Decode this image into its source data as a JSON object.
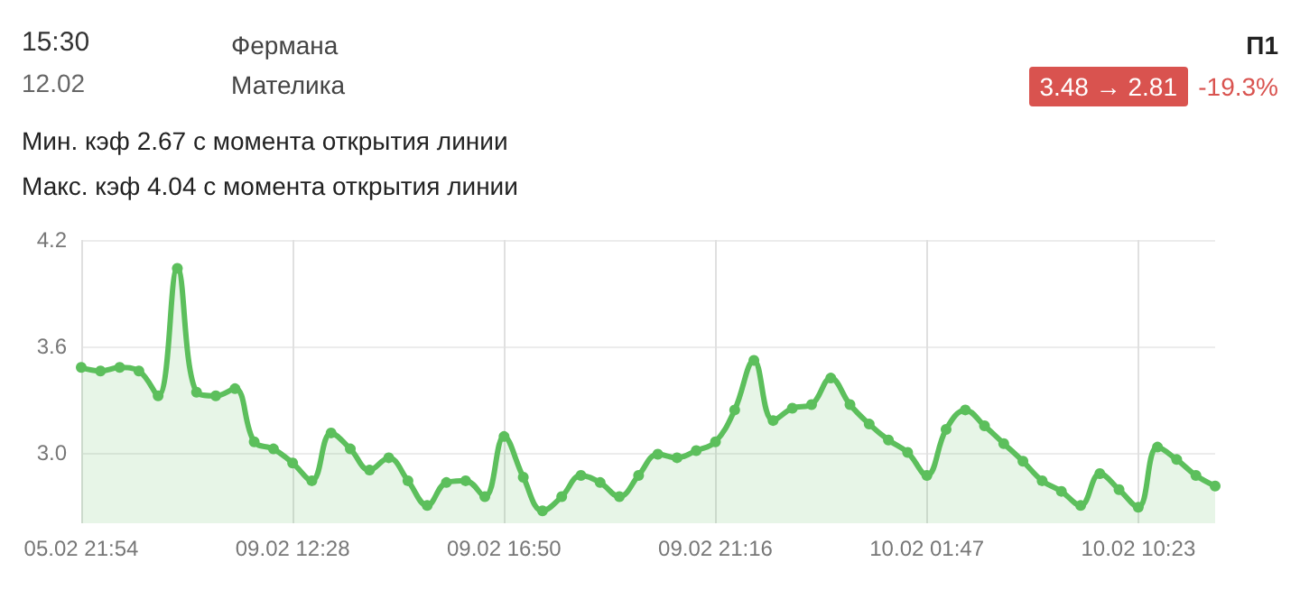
{
  "chart_data": {
    "type": "area",
    "annotations": [
      "15:30",
      "12.02",
      "Фермана",
      "Мателика",
      "П1",
      "3.48 → 2.81",
      "-19.3%",
      "Мин. кэф 2.67 с момента открытия линии",
      "Макс. кэф 4.04 с момента открытия линии"
    ],
    "categories": [
      "05.02 21:54",
      null,
      null,
      null,
      null,
      null,
      null,
      null,
      null,
      null,
      null,
      "09.02 12:28",
      null,
      null,
      null,
      null,
      null,
      null,
      null,
      null,
      null,
      null,
      "09.02 16:50",
      null,
      null,
      null,
      null,
      null,
      null,
      null,
      null,
      null,
      null,
      "09.02 21:16",
      null,
      null,
      null,
      null,
      null,
      null,
      null,
      null,
      null,
      null,
      "10.02 01:47",
      null,
      null,
      null,
      null,
      null,
      null,
      null,
      null,
      null,
      null,
      "10.02 10:23",
      null,
      null,
      null,
      null
    ],
    "series": [
      {
        "color": "#5cbf5c",
        "values": [
          3.48,
          3.46,
          3.48,
          3.46,
          3.32,
          4.04,
          3.34,
          3.32,
          3.36,
          3.06,
          3.02,
          2.94,
          2.84,
          3.11,
          3.02,
          2.9,
          2.97,
          2.84,
          2.7,
          2.83,
          2.84,
          2.75,
          3.09,
          2.86,
          2.67,
          2.75,
          2.87,
          2.83,
          2.75,
          2.87,
          2.99,
          2.97,
          3.01,
          3.06,
          3.24,
          3.52,
          3.18,
          3.25,
          3.27,
          3.42,
          3.27,
          3.16,
          3.07,
          3.0,
          2.87,
          3.13,
          3.24,
          3.15,
          3.05,
          2.95,
          2.84,
          2.78,
          2.7,
          2.88,
          2.79,
          2.69,
          3.03,
          2.96,
          2.87,
          2.81
        ]
      }
    ],
    "ylim": [
      2.6,
      4.2
    ],
    "yticks": [
      {
        "value": 3.0,
        "label": "3.0"
      },
      3.6,
      4.2
    ],
    "grid": true,
    "marker": "circle",
    "line_style": "solid"
  }
}
